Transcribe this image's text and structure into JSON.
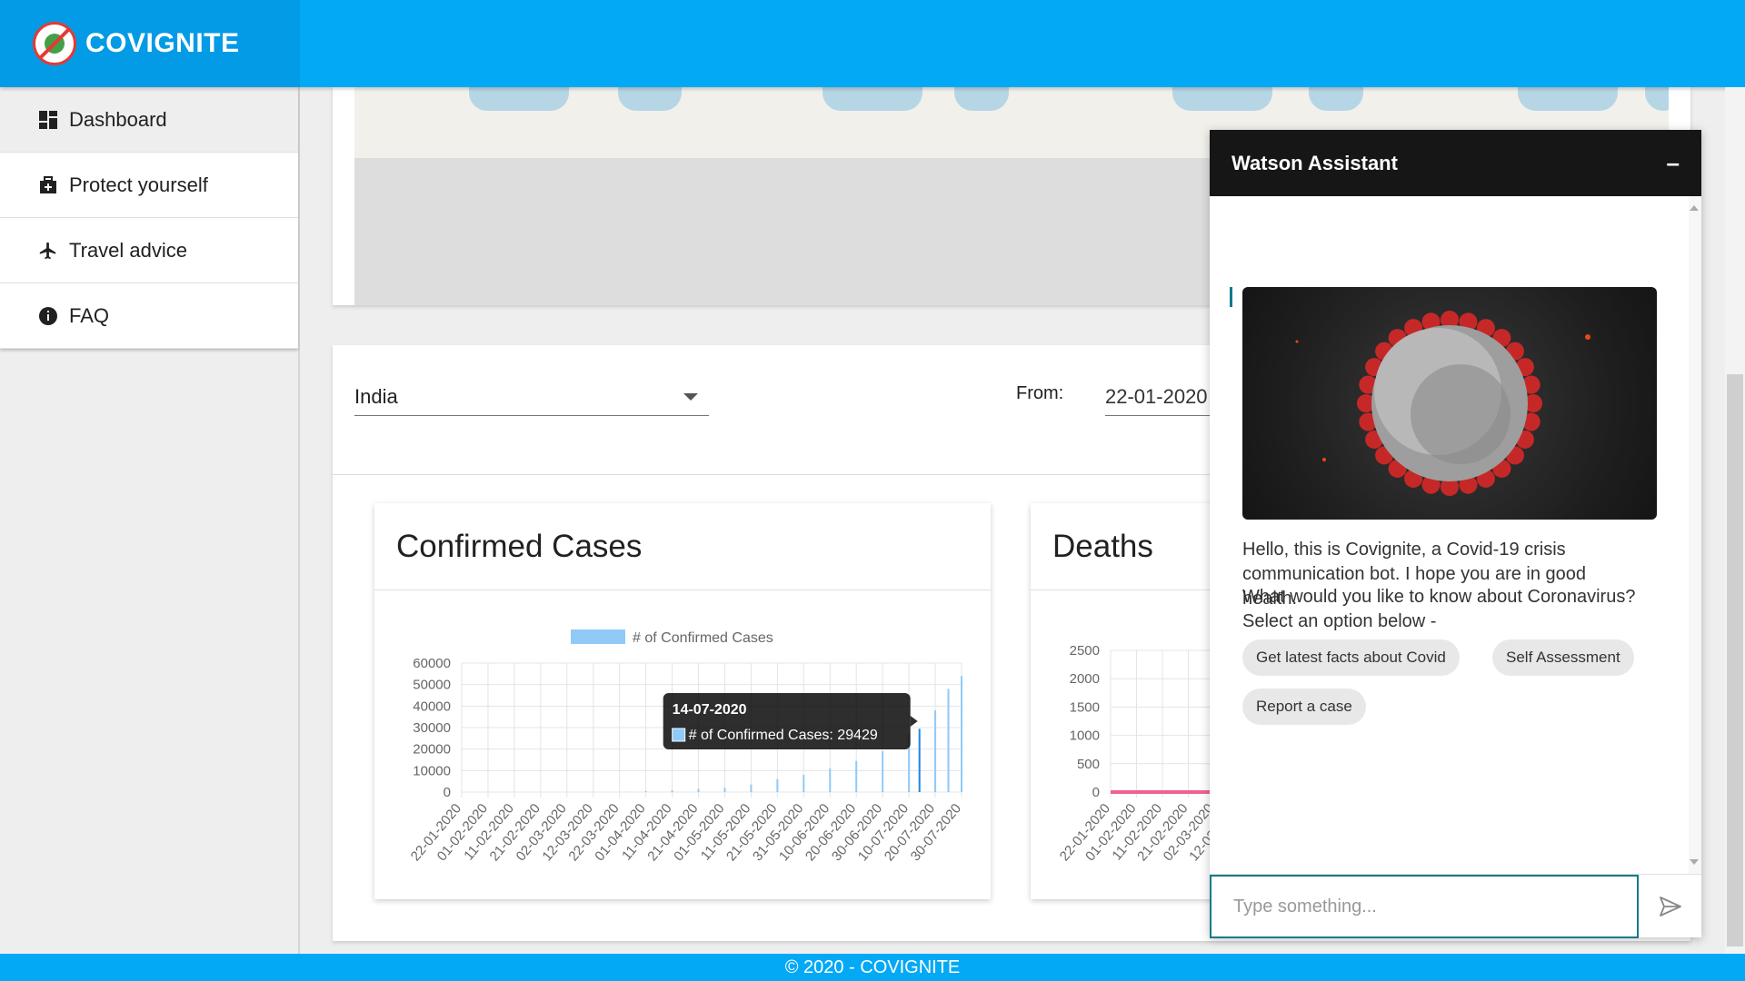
{
  "app": {
    "name": "COVIGNITE"
  },
  "sidebar": {
    "items": [
      {
        "label": "Dashboard",
        "icon": "dashboard-icon",
        "active": true
      },
      {
        "label": "Protect yourself",
        "icon": "medical-box-icon"
      },
      {
        "label": "Travel advice",
        "icon": "airplane-icon"
      },
      {
        "label": "FAQ",
        "icon": "info-icon"
      }
    ]
  },
  "filters": {
    "country": "India",
    "from_label": "From:",
    "from_value": "22-01-2020"
  },
  "charts": {
    "confirmed_title": "Confirmed Cases",
    "deaths_title": "Deaths"
  },
  "chart_data": [
    {
      "type": "bar",
      "title": "Confirmed Cases",
      "legend": "# of Confirmed Cases",
      "color": "#90caf9",
      "ylim": [
        0,
        60000
      ],
      "yticks": [
        0,
        10000,
        20000,
        30000,
        40000,
        50000,
        60000
      ],
      "xtick_labels": [
        "22-01-2020",
        "01-02-2020",
        "11-02-2020",
        "21-02-2020",
        "02-03-2020",
        "12-03-2020",
        "22-03-2020",
        "01-04-2020",
        "11-04-2020",
        "21-04-2020",
        "01-05-2020",
        "11-05-2020",
        "21-05-2020",
        "31-05-2020",
        "10-06-2020",
        "20-06-2020",
        "30-06-2020",
        "10-07-2020",
        "20-07-2020",
        "30-07-2020"
      ],
      "x": [
        "22-01-2020",
        "25-03-2020",
        "01-04-2020",
        "11-04-2020",
        "21-04-2020",
        "01-05-2020",
        "11-05-2020",
        "21-05-2020",
        "31-05-2020",
        "10-06-2020",
        "20-06-2020",
        "30-06-2020",
        "10-07-2020",
        "14-07-2020",
        "20-07-2020",
        "25-07-2020",
        "30-07-2020"
      ],
      "values": [
        0,
        100,
        400,
        800,
        1500,
        2000,
        3500,
        6000,
        8000,
        11000,
        14500,
        19000,
        27000,
        29429,
        38000,
        48000,
        54000
      ],
      "tooltip": {
        "date": "14-07-2020",
        "label": "# of Confirmed Cases: 29429"
      }
    },
    {
      "type": "line",
      "title": "Deaths",
      "color": "#f06292",
      "ylim": [
        0,
        2500
      ],
      "yticks": [
        0,
        500,
        1000,
        1500,
        2000,
        2500
      ],
      "xtick_labels": [
        "22-01-2020",
        "01-02-2020",
        "11-02-2020",
        "21-02-2020",
        "02-03-2020",
        "12-03-2020"
      ],
      "x": [
        "22-01-2020",
        "12-03-2020"
      ],
      "values": [
        0,
        0
      ]
    }
  ],
  "watson": {
    "title": "Watson Assistant",
    "minimize": "–",
    "greeting": "Hello, this is Covignite, a Covid-19 crisis communication bot. I hope you are in good health.",
    "question": "What would you like to know about Coronavirus? Select an option below -",
    "options": [
      "Get latest facts about Covid",
      "Self Assessment",
      "Report a case"
    ],
    "input_placeholder": "Type something..."
  },
  "footer": {
    "text": "© 2020 - COVIGNITE"
  },
  "colors": {
    "primary": "#03a9f4",
    "accent": "#0f7a8a",
    "header_dark": "#161616"
  }
}
